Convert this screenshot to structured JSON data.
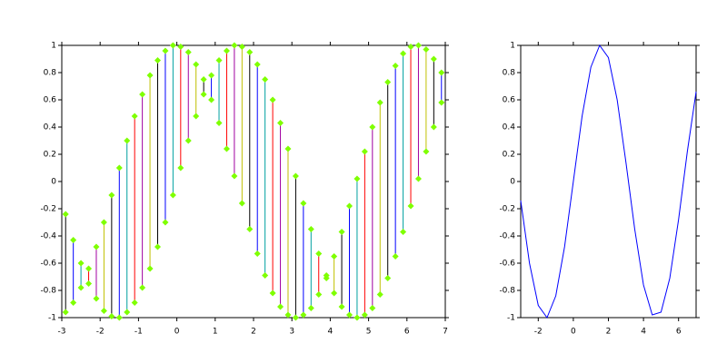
{
  "chart_data": [
    {
      "type": "segments",
      "x": [
        -2.9,
        -2.7,
        -2.5,
        -2.3,
        -2.1,
        -1.9,
        -1.7,
        -1.5,
        -1.3,
        -1.1,
        -0.9,
        -0.7,
        -0.5,
        -0.3,
        -0.1,
        0.1,
        0.3,
        0.5,
        0.7,
        0.9,
        1.1,
        1.3,
        1.5,
        1.7,
        1.9,
        2.1,
        2.3,
        2.5,
        2.7,
        2.9,
        3.1,
        3.3,
        3.5,
        3.7,
        3.9,
        4.1,
        4.3,
        4.5,
        4.7,
        4.9,
        5.1,
        5.3,
        5.5,
        5.7,
        5.9,
        6.1,
        6.3,
        6.5,
        6.7,
        6.9
      ],
      "y_start": [
        -0.24,
        -0.43,
        -0.6,
        -0.75,
        -0.86,
        -0.95,
        -0.99,
        -1.0,
        -0.96,
        -0.89,
        -0.78,
        -0.64,
        -0.48,
        -0.3,
        -0.1,
        0.1,
        0.3,
        0.48,
        0.64,
        0.78,
        0.89,
        0.96,
        1.0,
        0.99,
        0.95,
        0.86,
        0.75,
        0.6,
        0.43,
        0.24,
        0.04,
        -0.16,
        -0.35,
        -0.53,
        -0.69,
        -0.82,
        -0.92,
        -0.98,
        -1.0,
        -0.98,
        -0.93,
        -0.83,
        -0.71,
        -0.55,
        -0.37,
        -0.18,
        0.02,
        0.22,
        0.4,
        0.58
      ],
      "y_end": [
        -0.96,
        -0.89,
        -0.78,
        -0.64,
        -0.48,
        -0.3,
        -0.1,
        0.1,
        0.3,
        0.48,
        0.64,
        0.78,
        0.89,
        0.96,
        1.0,
        0.99,
        0.95,
        0.86,
        0.75,
        0.6,
        0.43,
        0.24,
        0.04,
        -0.16,
        -0.35,
        -0.53,
        -0.69,
        -0.82,
        -0.92,
        -0.98,
        -1.0,
        -0.98,
        -0.93,
        -0.83,
        -0.71,
        -0.55,
        -0.37,
        -0.18,
        0.02,
        0.22,
        0.4,
        0.58,
        0.73,
        0.85,
        0.94,
        0.99,
        1.0,
        0.97,
        0.9,
        0.8
      ],
      "colors": [
        "#000000",
        "#0000ff",
        "#00a0a0",
        "#ff0000",
        "#a000a0",
        "#c0c000"
      ],
      "marker_color": "#7fff00",
      "xlim": [
        -3,
        7
      ],
      "ylim": [
        -1,
        1
      ],
      "xticks": [
        -3,
        -2,
        -1,
        0,
        1,
        2,
        3,
        4,
        5,
        6,
        7
      ],
      "yticks": [
        -1,
        -0.8,
        -0.6,
        -0.4,
        -0.2,
        0,
        0.2,
        0.4,
        0.6,
        0.8,
        1
      ]
    },
    {
      "type": "line",
      "x": [
        -3,
        -2.5,
        -2,
        -1.5,
        -1,
        -0.5,
        0,
        0.5,
        1,
        1.5,
        2,
        2.5,
        3,
        3.5,
        4,
        4.5,
        5,
        5.5,
        6,
        6.5,
        7
      ],
      "values": [
        -0.14,
        -0.6,
        -0.91,
        -1.0,
        -0.84,
        -0.48,
        0,
        0.48,
        0.84,
        1.0,
        0.91,
        0.6,
        0.14,
        -0.35,
        -0.76,
        -0.98,
        -0.96,
        -0.71,
        -0.28,
        0.22,
        0.66
      ],
      "color": "#0000ff",
      "xlim": [
        -3,
        7
      ],
      "ylim": [
        -1,
        1
      ],
      "xticks": [
        -2,
        0,
        2,
        4,
        6
      ],
      "yticks": [
        -1,
        -0.8,
        -0.6,
        -0.4,
        -0.2,
        0,
        0.2,
        0.4,
        0.6,
        0.8,
        1
      ]
    }
  ]
}
